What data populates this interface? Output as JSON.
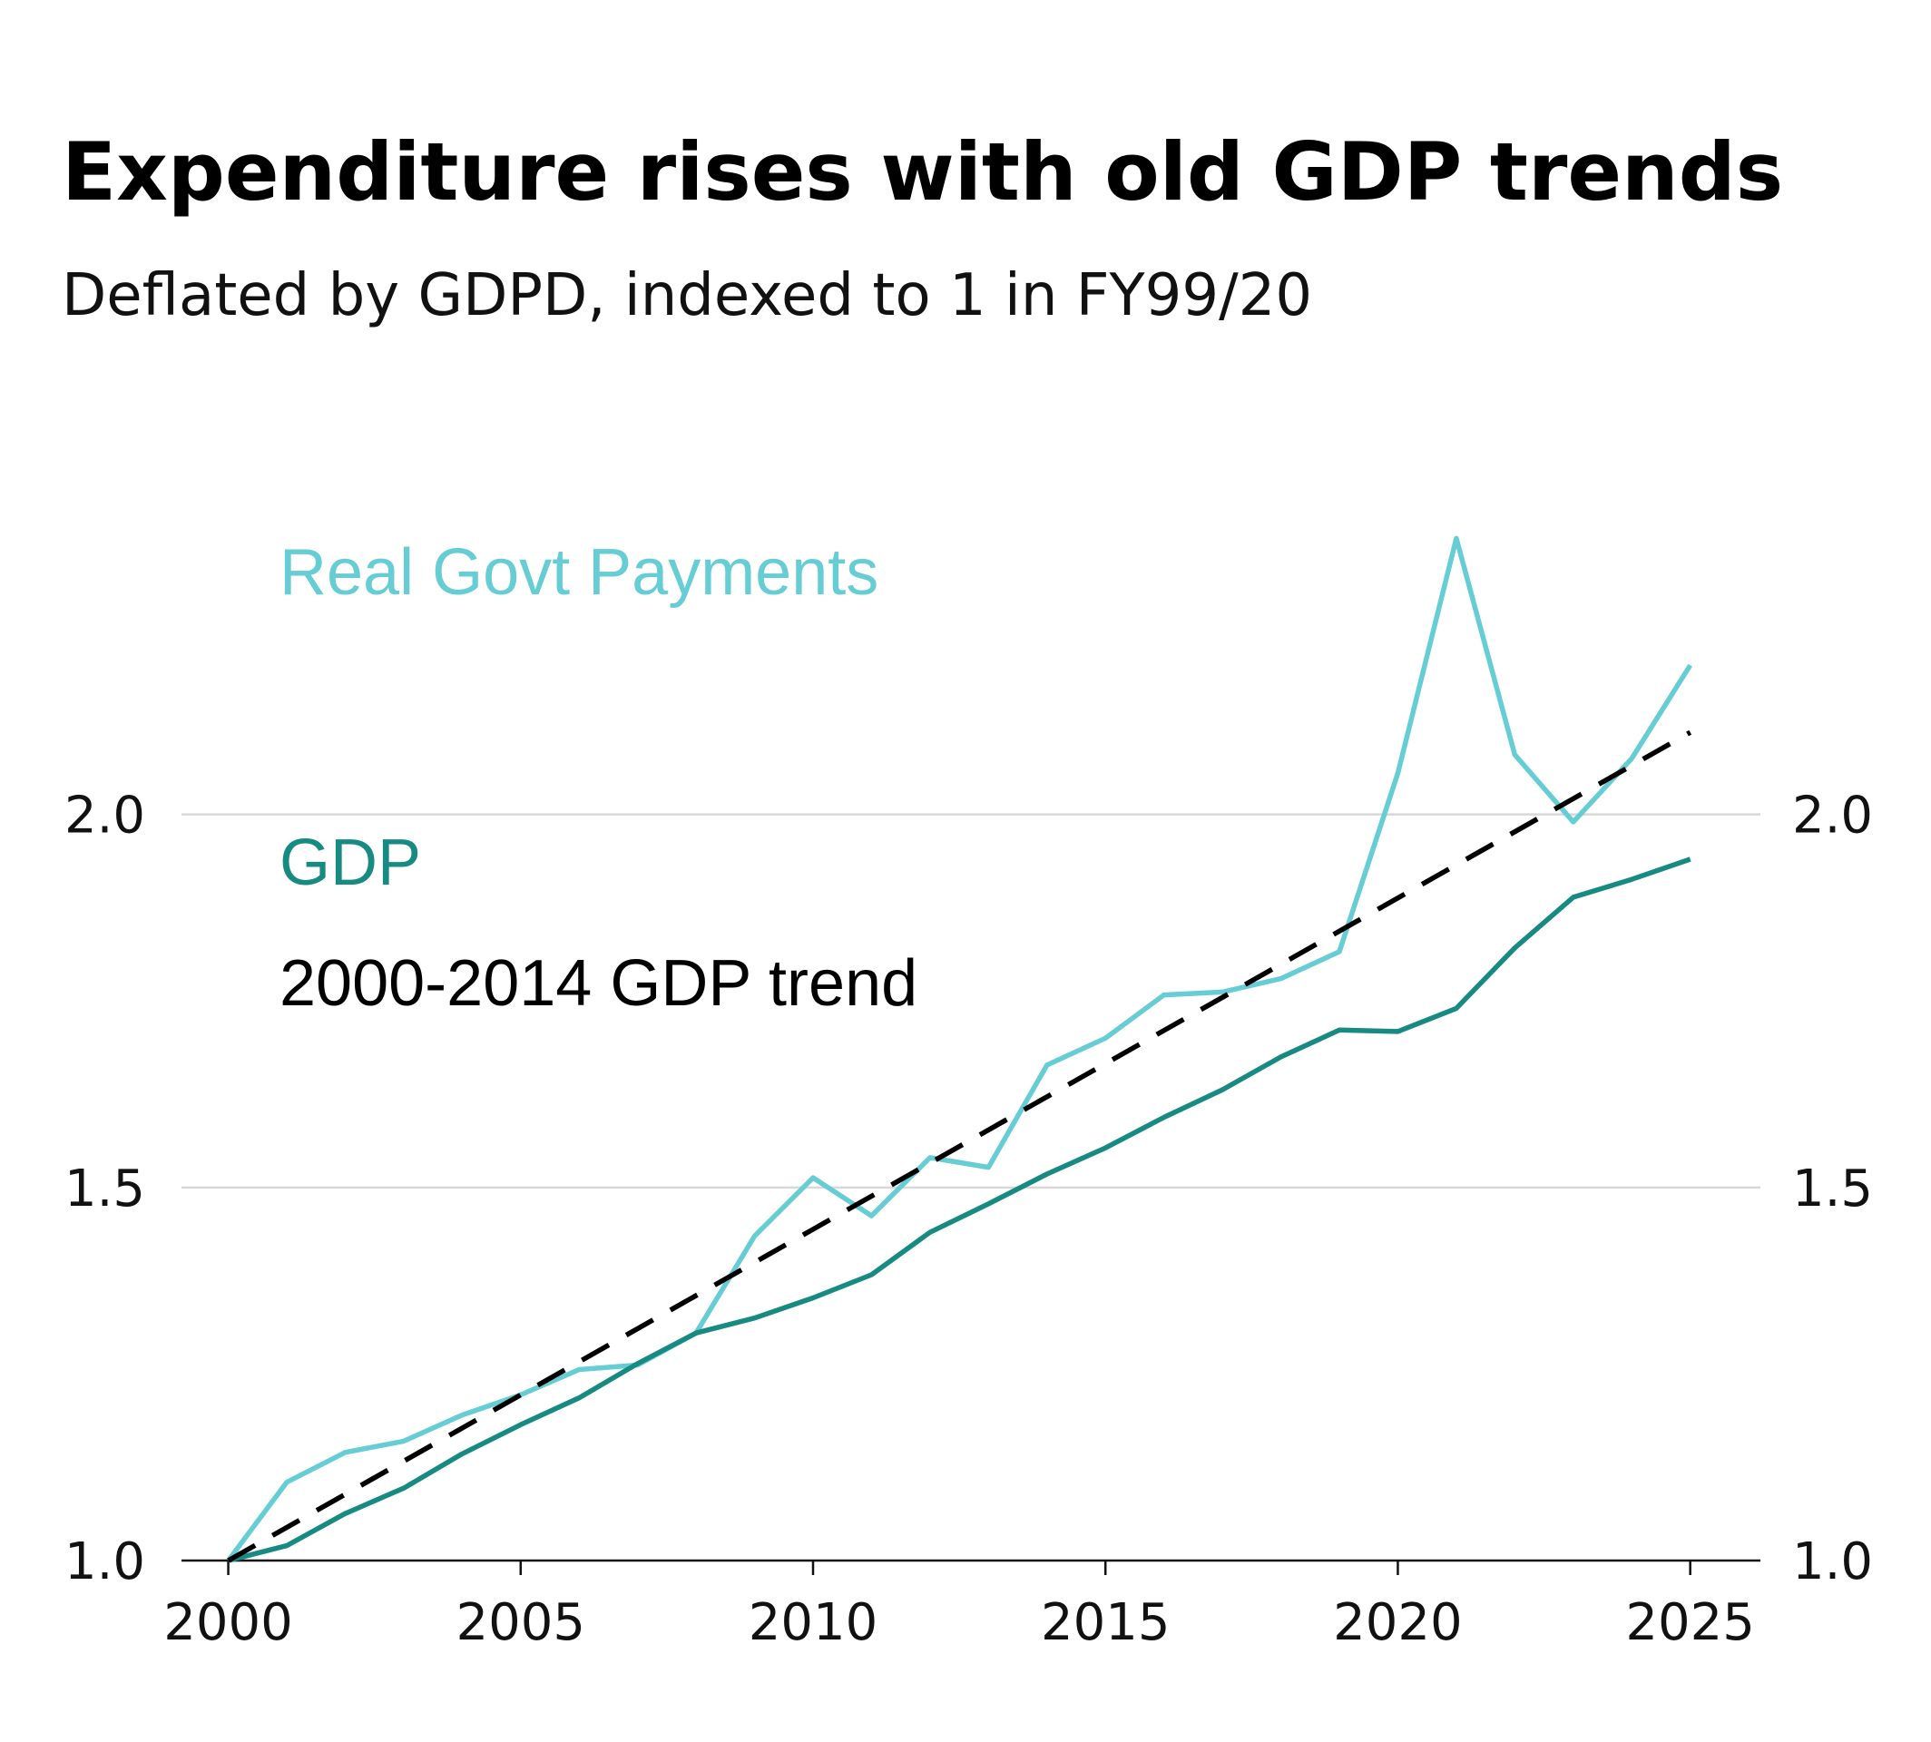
{
  "chart_data": {
    "type": "line",
    "title": "Expenditure rises with old GDP trends",
    "subtitle": "Deflated by GDPD, indexed to 1 in FY99/20",
    "xlabel": "",
    "ylabel": "",
    "xlim": [
      1999.2,
      2026.2
    ],
    "ylim": [
      1.0,
      2.52
    ],
    "x_ticks": [
      2000,
      2005,
      2010,
      2015,
      2020,
      2025
    ],
    "y_ticks": [
      1.0,
      1.5,
      2.0
    ],
    "y_tick_labels": [
      "1.0",
      "1.5",
      "2.0"
    ],
    "grid": true,
    "legend": "inline-left",
    "series": [
      {
        "name": "Real Govt Payments",
        "color": "#66cdd4",
        "style": "solid",
        "x": [
          2000,
          2001,
          2002,
          2003,
          2004,
          2005,
          2006,
          2007,
          2008,
          2009,
          2010,
          2011,
          2012,
          2013,
          2014,
          2015,
          2016,
          2017,
          2018,
          2019,
          2020,
          2021,
          2022,
          2023,
          2024,
          2025
        ],
        "values": [
          1.0,
          1.105,
          1.145,
          1.16,
          1.195,
          1.222,
          1.256,
          1.262,
          1.305,
          1.435,
          1.513,
          1.462,
          1.54,
          1.527,
          1.664,
          1.7,
          1.758,
          1.762,
          1.78,
          1.816,
          2.055,
          2.37,
          2.08,
          1.99,
          2.075,
          2.2
        ]
      },
      {
        "name": "GDP",
        "color": "#178a82",
        "style": "solid",
        "x": [
          2000,
          2001,
          2002,
          2003,
          2004,
          2005,
          2006,
          2007,
          2008,
          2009,
          2010,
          2011,
          2012,
          2013,
          2014,
          2015,
          2016,
          2017,
          2018,
          2019,
          2020,
          2021,
          2022,
          2023,
          2024,
          2025
        ],
        "values": [
          1.0,
          1.02,
          1.063,
          1.097,
          1.143,
          1.182,
          1.218,
          1.264,
          1.305,
          1.325,
          1.352,
          1.383,
          1.44,
          1.478,
          1.518,
          1.553,
          1.594,
          1.631,
          1.675,
          1.711,
          1.709,
          1.74,
          1.821,
          1.889,
          1.913,
          1.94
        ]
      },
      {
        "name": "2000-2014 GDP trend",
        "color": "#000000",
        "style": "dashed",
        "x": [
          2000,
          2025
        ],
        "values": [
          1.0,
          2.11
        ]
      }
    ],
    "annotations": [
      {
        "text": "Real Govt Payments",
        "series": 0,
        "color": "#66cdd4"
      },
      {
        "text": "GDP",
        "series": 1,
        "color": "#178a82"
      },
      {
        "text": "2000-2014 GDP trend",
        "series": 2,
        "color": "#000000"
      }
    ]
  }
}
